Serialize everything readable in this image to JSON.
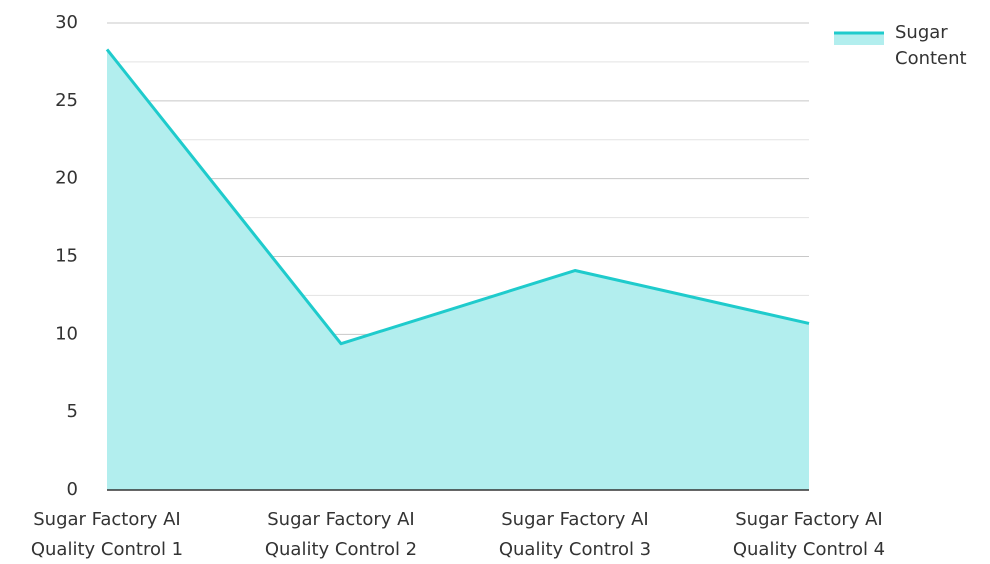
{
  "chart_data": {
    "type": "area",
    "categories": [
      "Sugar Factory AI Quality Control 1",
      "Sugar Factory AI Quality Control 2",
      "Sugar Factory AI Quality Control 3",
      "Sugar Factory AI Quality Control 4"
    ],
    "series": [
      {
        "name": "Sugar Content",
        "color": "#1fcbcc",
        "fill": "#b2eeee",
        "values": [
          28.3,
          9.4,
          14.1,
          10.7
        ]
      }
    ],
    "ylim": [
      0,
      30
    ],
    "yticks": [
      0,
      5,
      10,
      15,
      20,
      25,
      30
    ],
    "minor_yticks": [
      2.5,
      7.5,
      12.5,
      17.5,
      22.5,
      27.5
    ],
    "grid": true,
    "legend": "top-right"
  }
}
